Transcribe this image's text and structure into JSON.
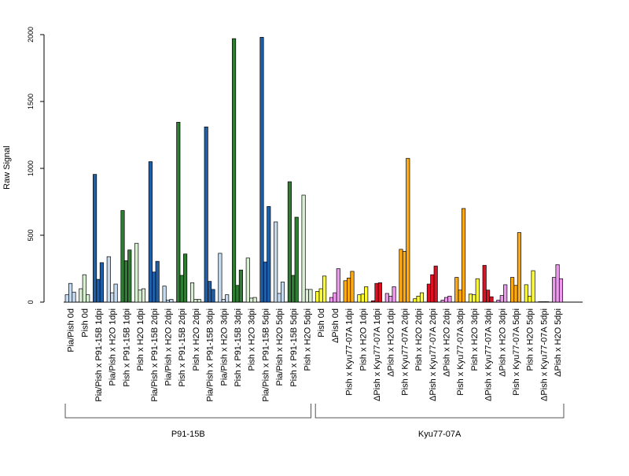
{
  "chart_data": {
    "type": "bar",
    "ylabel": "Raw Signal",
    "ylim": [
      0,
      2000
    ],
    "yticks": [
      0,
      500,
      1000,
      1500,
      2000
    ],
    "grid": false,
    "categories": [
      {
        "label": "Pia/Pish 0d",
        "color": "#c6dbef",
        "values": [
          55,
          140,
          75
        ]
      },
      {
        "label": "Pish 0d",
        "color": "#d9f0d3",
        "values": [
          100,
          205,
          55
        ]
      },
      {
        "label": "Pia/Pish x P91-15B 1dpi",
        "color": "#1f5fa8",
        "values": [
          955,
          170,
          295
        ]
      },
      {
        "label": "Pia/Pish x H2O 1dpi",
        "color": "#c6dbef",
        "values": [
          340,
          70,
          135
        ]
      },
      {
        "label": "Pish x P91-15B 1dpi",
        "color": "#2e7d32",
        "values": [
          685,
          310,
          390
        ]
      },
      {
        "label": "Pish x H2O 1dpi",
        "color": "#d9f0d3",
        "values": [
          440,
          90,
          100
        ]
      },
      {
        "label": "Pia/Pish x P91-15B 2dpi",
        "color": "#1f5fa8",
        "values": [
          1050,
          225,
          305
        ]
      },
      {
        "label": "Pia/Pish x H2O 2dpi",
        "color": "#c6dbef",
        "values": [
          120,
          15,
          20
        ]
      },
      {
        "label": "Pish x P91-15B 2dpi",
        "color": "#2e7d32",
        "values": [
          1345,
          200,
          360
        ]
      },
      {
        "label": "Pish x H2O 2dpi",
        "color": "#d9f0d3",
        "values": [
          145,
          20,
          20
        ]
      },
      {
        "label": "Pia/Pish x P91-15B 3dpi",
        "color": "#1f5fa8",
        "values": [
          1310,
          155,
          95
        ]
      },
      {
        "label": "Pia/Pish x H2O 3dpi",
        "color": "#c6dbef",
        "values": [
          365,
          20,
          55
        ]
      },
      {
        "label": "Pish x P91-15B 3dpi",
        "color": "#2e7d32",
        "values": [
          1970,
          125,
          240
        ]
      },
      {
        "label": "Pish x H2O 3dpi",
        "color": "#d9f0d3",
        "values": [
          330,
          30,
          35
        ]
      },
      {
        "label": "Pia/Pish x P91-15B 5dpi",
        "color": "#1f5fa8",
        "values": [
          1980,
          300,
          715
        ]
      },
      {
        "label": "Pia/Pish x H2O 5dpi",
        "color": "#c6dbef",
        "values": [
          600,
          65,
          150
        ]
      },
      {
        "label": "Pish x P91-15B 5dpi",
        "color": "#2e7d32",
        "values": [
          900,
          200,
          635
        ]
      },
      {
        "label": "Pish x H2O 5dpi",
        "color": "#d9f0d3",
        "values": [
          800,
          95,
          95
        ]
      },
      {
        "label": "Pish 0d",
        "color": "#ffff33",
        "values": [
          80,
          100,
          195
        ]
      },
      {
        "label": "ΔPish 0d",
        "color": "#ee99ee",
        "values": [
          35,
          70,
          250
        ]
      },
      {
        "label": "Pish x Kyu77-07A 1dpi",
        "color": "#ffaa11",
        "values": [
          160,
          180,
          230
        ]
      },
      {
        "label": "Pish x H2O 1dpi",
        "color": "#ffff33",
        "values": [
          55,
          60,
          115
        ]
      },
      {
        "label": "ΔPish x Kyu77-07A 1dpi",
        "color": "#dd1122",
        "values": [
          10,
          140,
          145
        ]
      },
      {
        "label": "ΔPish x H2O 1dpi",
        "color": "#ee99ee",
        "values": [
          65,
          45,
          115
        ]
      },
      {
        "label": "Pish x Kyu77-07A 2dpi",
        "color": "#ffaa11",
        "values": [
          395,
          380,
          1075
        ]
      },
      {
        "label": "Pish x H2O 2dpi",
        "color": "#ffff33",
        "values": [
          25,
          45,
          70
        ]
      },
      {
        "label": "ΔPish x Kyu77-07A 2dpi",
        "color": "#dd1122",
        "values": [
          135,
          205,
          270
        ]
      },
      {
        "label": "ΔPish x H2O 2dpi",
        "color": "#ee99ee",
        "values": [
          15,
          35,
          45
        ]
      },
      {
        "label": "Pish x Kyu77-07A 3dpi",
        "color": "#ffaa11",
        "values": [
          185,
          90,
          700
        ]
      },
      {
        "label": "Pish x H2O 3dpi",
        "color": "#ffff33",
        "values": [
          60,
          55,
          175
        ]
      },
      {
        "label": "ΔPish x Kyu77-07A 3dpi",
        "color": "#dd1122",
        "values": [
          275,
          90,
          40
        ]
      },
      {
        "label": "ΔPish x H2O 3dpi",
        "color": "#ee99ee",
        "values": [
          15,
          50,
          130
        ]
      },
      {
        "label": "Pish x Kyu77-07A 5dpi",
        "color": "#ffaa11",
        "values": [
          185,
          125,
          520
        ]
      },
      {
        "label": "Pish x H2O 5dpi",
        "color": "#ffff33",
        "values": [
          130,
          45,
          235
        ]
      },
      {
        "label": "ΔPish x Kyu77-07A 5dpi",
        "color": "#dd1122",
        "values": [
          3,
          3,
          3
        ]
      },
      {
        "label": "ΔPish x H2O 5dpi",
        "color": "#ee99ee",
        "values": [
          185,
          280,
          175
        ]
      }
    ],
    "groups": [
      {
        "label": "P91-15B",
        "first": 0,
        "last": 17
      },
      {
        "label": "Kyu77-07A",
        "first": 18,
        "last": 35
      }
    ]
  }
}
